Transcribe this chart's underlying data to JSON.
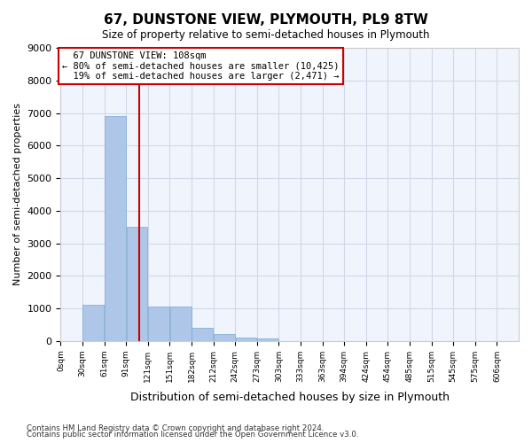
{
  "title": "67, DUNSTONE VIEW, PLYMOUTH, PL9 8TW",
  "subtitle": "Size of property relative to semi-detached houses in Plymouth",
  "xlabel": "Distribution of semi-detached houses by size in Plymouth",
  "ylabel": "Number of semi-detached properties",
  "property_size": 108,
  "property_label": "67 DUNSTONE VIEW: 108sqm",
  "pct_smaller": 80,
  "count_smaller": "10,425",
  "pct_larger": 19,
  "count_larger": "2,471",
  "bin_width": 30,
  "bins": [
    0,
    30,
    60,
    90,
    120,
    150,
    180,
    210,
    240,
    270,
    300,
    330,
    360,
    390,
    420,
    450,
    480,
    510,
    540,
    570,
    600
  ],
  "bar_heights": [
    0,
    1100,
    6900,
    3500,
    1050,
    1050,
    400,
    200,
    100,
    70,
    0,
    0,
    0,
    0,
    0,
    0,
    0,
    0,
    0,
    0,
    0
  ],
  "bar_color": "#aec6e8",
  "bar_edge_color": "#7aaad0",
  "grid_color": "#d0d8e8",
  "line_color": "#cc0000",
  "annotation_box_color": "#ffffff",
  "annotation_box_edge": "#cc0000",
  "ylim": [
    0,
    9000
  ],
  "yticks": [
    0,
    1000,
    2000,
    3000,
    4000,
    5000,
    6000,
    7000,
    8000,
    9000
  ],
  "tick_labels": [
    "0sqm",
    "30sqm",
    "61sqm",
    "91sqm",
    "121sqm",
    "151sqm",
    "182sqm",
    "212sqm",
    "242sqm",
    "273sqm",
    "303sqm",
    "333sqm",
    "363sqm",
    "394sqm",
    "424sqm",
    "454sqm",
    "485sqm",
    "515sqm",
    "545sqm",
    "575sqm",
    "606sqm"
  ],
  "footer_line1": "Contains HM Land Registry data © Crown copyright and database right 2024.",
  "footer_line2": "Contains public sector information licensed under the Open Government Licence v3.0.",
  "background_color": "#f0f4fc"
}
